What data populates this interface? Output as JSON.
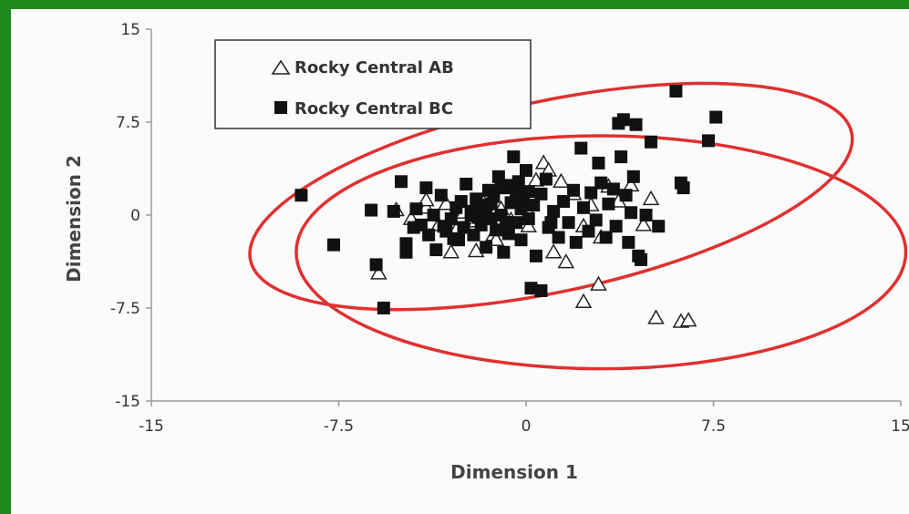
{
  "chart_data": {
    "type": "scatter",
    "xlabel": "Dimension 1",
    "ylabel": "Dimension 2",
    "xlim": [
      -15,
      15
    ],
    "ylim": [
      -15,
      15
    ],
    "xticks": [
      "-15",
      "-7.5",
      "0",
      "7.5",
      "15"
    ],
    "yticks": [
      "15",
      "7.5",
      "0",
      "-7.5",
      "-15"
    ],
    "grid": false,
    "legend_placement": "top-left",
    "series": [
      {
        "name": "Rocky Central AB",
        "marker": "open-triangle",
        "color": "#222222",
        "points": [
          [
            -5.2,
            0.4
          ],
          [
            -4.6,
            -0.3
          ],
          [
            -4.0,
            0.6
          ],
          [
            -3.5,
            -0.8
          ],
          [
            -3.2,
            0.9
          ],
          [
            -2.8,
            -1.2
          ],
          [
            -2.5,
            0.2
          ],
          [
            -2.0,
            -0.5
          ],
          [
            -1.7,
            1.0
          ],
          [
            -1.3,
            -1.6
          ],
          [
            -1.0,
            0.5
          ],
          [
            -0.6,
            -0.4
          ],
          [
            -0.3,
            1.3
          ],
          [
            0.1,
            -0.9
          ],
          [
            0.4,
            2.8
          ],
          [
            0.7,
            4.2
          ],
          [
            0.9,
            3.6
          ],
          [
            1.1,
            -3.0
          ],
          [
            1.6,
            -3.8
          ],
          [
            1.9,
            1.7
          ],
          [
            2.3,
            -0.9
          ],
          [
            2.6,
            0.8
          ],
          [
            3.0,
            -1.8
          ],
          [
            3.3,
            2.3
          ],
          [
            3.7,
            1.1
          ],
          [
            4.2,
            2.4
          ],
          [
            4.7,
            -0.8
          ],
          [
            5.0,
            1.3
          ],
          [
            2.3,
            -7.0
          ],
          [
            2.9,
            -5.6
          ],
          [
            5.2,
            -8.3
          ],
          [
            6.2,
            -8.6
          ],
          [
            6.5,
            -8.5
          ],
          [
            -4.0,
            1.2
          ],
          [
            -3.0,
            -3.0
          ],
          [
            -2.0,
            -2.9
          ],
          [
            -5.9,
            -4.7
          ],
          [
            0.0,
            0.6
          ],
          [
            1.4,
            2.7
          ],
          [
            -1.2,
            -2.0
          ]
        ]
      },
      {
        "name": "Rocky Central BC",
        "marker": "filled-square",
        "color": "#111111",
        "points": [
          [
            -9.0,
            1.6
          ],
          [
            -7.7,
            -2.4
          ],
          [
            -6.2,
            0.4
          ],
          [
            -6.0,
            -4.0
          ],
          [
            -5.7,
            -7.5
          ],
          [
            -5.3,
            0.3
          ],
          [
            -5.0,
            2.7
          ],
          [
            -4.8,
            -2.3
          ],
          [
            -4.8,
            -3.0
          ],
          [
            -4.5,
            -1.0
          ],
          [
            -4.2,
            -0.8
          ],
          [
            -4.0,
            2.2
          ],
          [
            -3.9,
            -1.6
          ],
          [
            -3.7,
            0.0
          ],
          [
            -3.6,
            -2.8
          ],
          [
            -3.4,
            1.6
          ],
          [
            -3.2,
            -1.3
          ],
          [
            -3.0,
            -0.3
          ],
          [
            -2.8,
            0.6
          ],
          [
            -2.7,
            -2.0
          ],
          [
            -2.5,
            -1.0
          ],
          [
            -2.4,
            2.5
          ],
          [
            -2.2,
            0.3
          ],
          [
            -2.1,
            -1.6
          ],
          [
            -2.0,
            1.3
          ],
          [
            -1.8,
            -0.8
          ],
          [
            -1.7,
            0.8
          ],
          [
            -1.6,
            -2.6
          ],
          [
            -1.5,
            2.0
          ],
          [
            -1.4,
            -0.3
          ],
          [
            -1.3,
            1.5
          ],
          [
            -1.2,
            -1.2
          ],
          [
            -1.1,
            3.1
          ],
          [
            -1.0,
            0.0
          ],
          [
            -0.9,
            -3.0
          ],
          [
            -0.8,
            2.2
          ],
          [
            -0.7,
            -1.5
          ],
          [
            -0.6,
            1.0
          ],
          [
            -0.5,
            4.7
          ],
          [
            -0.4,
            -0.6
          ],
          [
            -0.3,
            2.7
          ],
          [
            -0.2,
            -2.0
          ],
          [
            -0.1,
            1.3
          ],
          [
            0.0,
            3.6
          ],
          [
            0.1,
            -0.3
          ],
          [
            0.2,
            -5.9
          ],
          [
            0.3,
            0.8
          ],
          [
            0.4,
            -3.3
          ],
          [
            0.6,
            1.7
          ],
          [
            0.8,
            2.9
          ],
          [
            0.9,
            -1.0
          ],
          [
            1.1,
            0.3
          ],
          [
            1.3,
            -1.8
          ],
          [
            1.5,
            1.1
          ],
          [
            1.7,
            -0.6
          ],
          [
            1.9,
            2.0
          ],
          [
            2.0,
            -2.2
          ],
          [
            2.2,
            5.4
          ],
          [
            2.3,
            0.6
          ],
          [
            2.5,
            -1.3
          ],
          [
            2.6,
            1.8
          ],
          [
            2.8,
            -0.4
          ],
          [
            2.9,
            4.2
          ],
          [
            3.0,
            2.6
          ],
          [
            3.2,
            -1.8
          ],
          [
            3.3,
            0.9
          ],
          [
            3.5,
            2.1
          ],
          [
            3.6,
            -0.9
          ],
          [
            3.7,
            7.4
          ],
          [
            3.8,
            4.7
          ],
          [
            3.9,
            7.7
          ],
          [
            4.0,
            1.6
          ],
          [
            4.1,
            -2.2
          ],
          [
            4.2,
            0.2
          ],
          [
            4.3,
            3.1
          ],
          [
            4.4,
            7.3
          ],
          [
            4.5,
            -3.3
          ],
          [
            4.6,
            -3.6
          ],
          [
            4.8,
            0.0
          ],
          [
            5.0,
            5.9
          ],
          [
            5.3,
            -0.9
          ],
          [
            6.0,
            10.0
          ],
          [
            6.2,
            2.6
          ],
          [
            6.3,
            2.2
          ],
          [
            7.3,
            6.0
          ],
          [
            7.6,
            7.9
          ],
          [
            -2.2,
            0.0
          ],
          [
            -1.9,
            -0.2
          ],
          [
            -1.6,
            0.4
          ],
          [
            -1.4,
            0.9
          ],
          [
            -1.0,
            2.2
          ],
          [
            -0.8,
            -0.6
          ],
          [
            -0.6,
            2.4
          ],
          [
            -0.4,
            1.7
          ],
          [
            -0.2,
            0.5
          ],
          [
            0.1,
            1.9
          ],
          [
            -3.3,
            -0.9
          ],
          [
            -2.9,
            -1.9
          ],
          [
            -2.6,
            1.1
          ],
          [
            -4.4,
            0.5
          ],
          [
            0.6,
            -6.1
          ],
          [
            1.0,
            -0.6
          ]
        ]
      }
    ],
    "ellipses": [
      {
        "cx": 1.0,
        "cy": 1.5,
        "rx": 12.3,
        "ry": 7.7,
        "rotation_deg": 12,
        "color": "#e03030"
      },
      {
        "cx": 3.0,
        "cy": -3.0,
        "rx": 12.2,
        "ry": 9.4,
        "rotation_deg": 0,
        "color": "#e03030"
      }
    ]
  }
}
